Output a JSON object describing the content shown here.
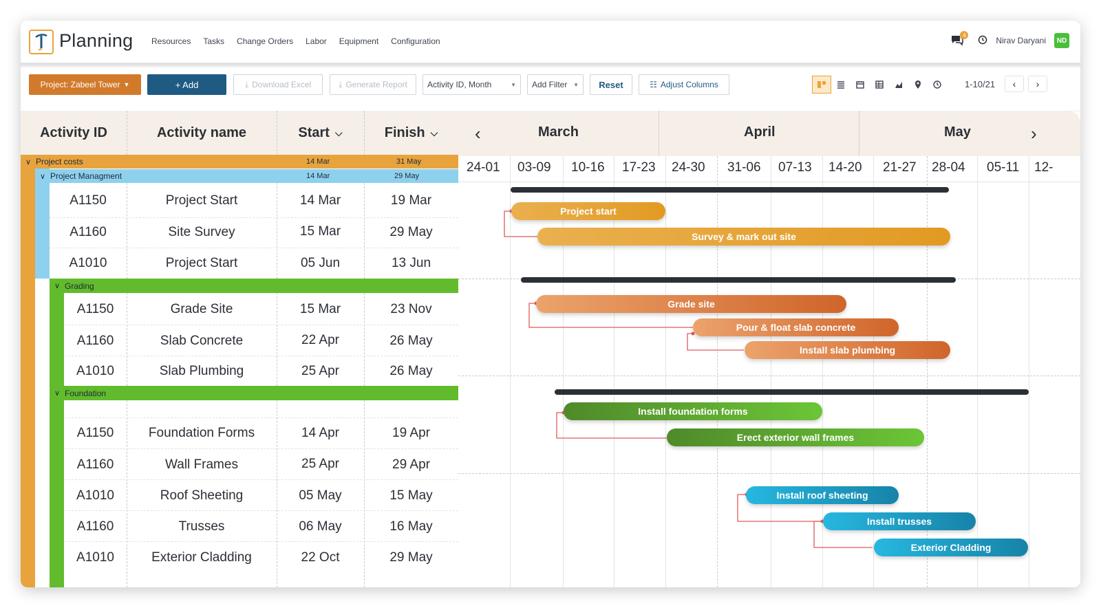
{
  "header": {
    "app_title": "Planning",
    "nav": [
      "Resources",
      "Tasks",
      "Change Orders",
      "Labor",
      "Equipment",
      "Configuration"
    ],
    "chat_badge": "4",
    "user_name": "Nirav Daryani",
    "user_initials": "ND"
  },
  "toolbar": {
    "project_label": "Project: Zabeel Tower",
    "add_label": "+ Add",
    "download_label": "Download Excel",
    "report_label": "Generate Report",
    "group_select": "Activity ID, Month",
    "filter_label": "Add Filter",
    "reset_label": "Reset",
    "adjust_label": "Adjust Columns",
    "paging": "1-10/21",
    "view_icons": [
      "split-view-icon",
      "list-view-icon",
      "calendar-icon",
      "table-icon",
      "chart-icon",
      "map-pin-icon",
      "clock-icon"
    ]
  },
  "grid": {
    "columns": [
      "Activity ID",
      "Activity name",
      "Start",
      "Finish"
    ],
    "groups": {
      "project_costs": {
        "label": "Project costs",
        "start": "14 Mar",
        "finish": "31 May"
      },
      "project_management": {
        "label": "Project Managment",
        "start": "14 Mar",
        "finish": "29 May"
      },
      "grading": {
        "label": "Grading"
      },
      "foundation": {
        "label": "Foundation"
      }
    },
    "rows": [
      {
        "id": "A1150",
        "name": "Project Start",
        "start": "14 Mar",
        "finish": "19 Mar"
      },
      {
        "id": "A1160",
        "name": "Site Survey",
        "start": "15 Mar",
        "finish": "29 May"
      },
      {
        "id": "A1010",
        "name": "Project Start",
        "start": "05 Jun",
        "finish": "13 Jun"
      },
      {
        "id": "A1150",
        "name": "Grade Site",
        "start": "15 Mar",
        "finish": "23 Nov"
      },
      {
        "id": "A1160",
        "name": "Slab Concrete",
        "start": "22 Apr",
        "finish": "26 May"
      },
      {
        "id": "A1010",
        "name": "Slab Plumbing",
        "start": "25 Apr",
        "finish": "26 May"
      },
      {
        "id": "A1150",
        "name": "Foundation Forms",
        "start": "14 Apr",
        "finish": "19 Apr"
      },
      {
        "id": "A1160",
        "name": "Wall Frames",
        "start": "25 Apr",
        "finish": "29 Apr"
      },
      {
        "id": "A1010",
        "name": "Roof Sheeting",
        "start": "05 May",
        "finish": "15 May"
      },
      {
        "id": "A1160",
        "name": "Trusses",
        "start": "06 May",
        "finish": "16 May"
      },
      {
        "id": "A1010",
        "name": "Exterior Cladding",
        "start": "22 Oct",
        "finish": "29 May"
      }
    ]
  },
  "gantt": {
    "months": [
      "March",
      "April",
      "May"
    ],
    "weeks": [
      "24-01",
      "03-09",
      "10-16",
      "17-23",
      "24-30",
      "31-06",
      "07-13",
      "14-20",
      "21-27",
      "28-04",
      "05-11",
      "12-"
    ],
    "bars": [
      {
        "label": "Project start",
        "color": "#e8a33d"
      },
      {
        "label": "Survey & mark out site",
        "color": "#e8a33d"
      },
      {
        "label": "Grade site",
        "color": "#d9733a"
      },
      {
        "label": "Pour & float slab concrete",
        "color": "#d9733a"
      },
      {
        "label": "Install slab plumbing",
        "color": "#d9733a"
      },
      {
        "label": "Install foundation forms",
        "color": "#5aa832"
      },
      {
        "label": "Erect exterior wall frames",
        "color": "#5aa832"
      },
      {
        "label": "Install roof sheeting",
        "color": "#1fa5c9"
      },
      {
        "label": "Install trusses",
        "color": "#1fa5c9"
      },
      {
        "label": "Exterior Cladding",
        "color": "#1fa5c9"
      }
    ]
  },
  "colors": {
    "orange_band": "#e8a33d",
    "blue_band": "#8ed1ee",
    "green_band": "#62bb2c",
    "header_bg": "#f6efe7",
    "primary": "#1f5a83"
  }
}
